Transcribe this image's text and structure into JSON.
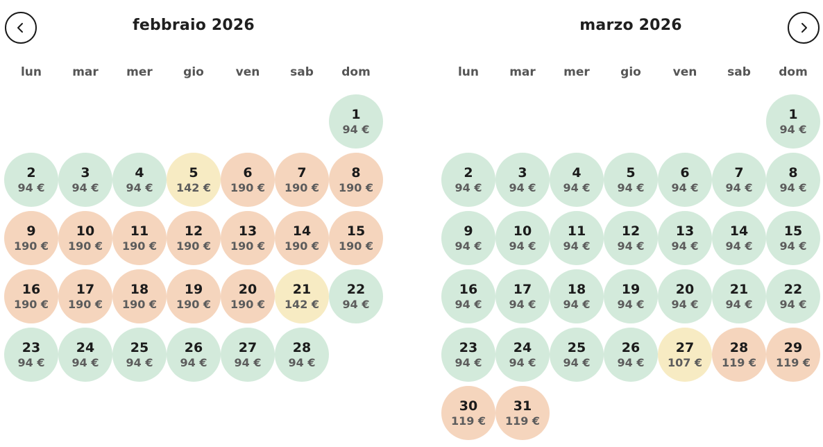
{
  "nav": {
    "prev_icon": "chevron-left-icon",
    "next_icon": "chevron-right-icon"
  },
  "colors": {
    "low": "#d3eadb",
    "mid": "#f7ebc3",
    "high": "#f5d5bd"
  },
  "weekdays": [
    "lun",
    "mar",
    "mer",
    "gio",
    "ven",
    "sab",
    "dom"
  ],
  "months": [
    {
      "title": "febbraio 2026",
      "start_offset": 6,
      "days": [
        {
          "day": "1",
          "price": "94 €",
          "level": "low"
        },
        {
          "day": "2",
          "price": "94 €",
          "level": "low"
        },
        {
          "day": "3",
          "price": "94 €",
          "level": "low"
        },
        {
          "day": "4",
          "price": "94 €",
          "level": "low"
        },
        {
          "day": "5",
          "price": "142 €",
          "level": "mid"
        },
        {
          "day": "6",
          "price": "190 €",
          "level": "high"
        },
        {
          "day": "7",
          "price": "190 €",
          "level": "high"
        },
        {
          "day": "8",
          "price": "190 €",
          "level": "high"
        },
        {
          "day": "9",
          "price": "190 €",
          "level": "high"
        },
        {
          "day": "10",
          "price": "190 €",
          "level": "high"
        },
        {
          "day": "11",
          "price": "190 €",
          "level": "high"
        },
        {
          "day": "12",
          "price": "190 €",
          "level": "high"
        },
        {
          "day": "13",
          "price": "190 €",
          "level": "high"
        },
        {
          "day": "14",
          "price": "190 €",
          "level": "high"
        },
        {
          "day": "15",
          "price": "190 €",
          "level": "high"
        },
        {
          "day": "16",
          "price": "190 €",
          "level": "high"
        },
        {
          "day": "17",
          "price": "190 €",
          "level": "high"
        },
        {
          "day": "18",
          "price": "190 €",
          "level": "high"
        },
        {
          "day": "19",
          "price": "190 €",
          "level": "high"
        },
        {
          "day": "20",
          "price": "190 €",
          "level": "high"
        },
        {
          "day": "21",
          "price": "142 €",
          "level": "mid"
        },
        {
          "day": "22",
          "price": "94 €",
          "level": "low"
        },
        {
          "day": "23",
          "price": "94 €",
          "level": "low"
        },
        {
          "day": "24",
          "price": "94 €",
          "level": "low"
        },
        {
          "day": "25",
          "price": "94 €",
          "level": "low"
        },
        {
          "day": "26",
          "price": "94 €",
          "level": "low"
        },
        {
          "day": "27",
          "price": "94 €",
          "level": "low"
        },
        {
          "day": "28",
          "price": "94 €",
          "level": "low"
        }
      ]
    },
    {
      "title": "marzo 2026",
      "start_offset": 6,
      "days": [
        {
          "day": "1",
          "price": "94 €",
          "level": "low"
        },
        {
          "day": "2",
          "price": "94 €",
          "level": "low"
        },
        {
          "day": "3",
          "price": "94 €",
          "level": "low"
        },
        {
          "day": "4",
          "price": "94 €",
          "level": "low"
        },
        {
          "day": "5",
          "price": "94 €",
          "level": "low"
        },
        {
          "day": "6",
          "price": "94 €",
          "level": "low"
        },
        {
          "day": "7",
          "price": "94 €",
          "level": "low"
        },
        {
          "day": "8",
          "price": "94 €",
          "level": "low"
        },
        {
          "day": "9",
          "price": "94 €",
          "level": "low"
        },
        {
          "day": "10",
          "price": "94 €",
          "level": "low"
        },
        {
          "day": "11",
          "price": "94 €",
          "level": "low"
        },
        {
          "day": "12",
          "price": "94 €",
          "level": "low"
        },
        {
          "day": "13",
          "price": "94 €",
          "level": "low"
        },
        {
          "day": "14",
          "price": "94 €",
          "level": "low"
        },
        {
          "day": "15",
          "price": "94 €",
          "level": "low"
        },
        {
          "day": "16",
          "price": "94 €",
          "level": "low"
        },
        {
          "day": "17",
          "price": "94 €",
          "level": "low"
        },
        {
          "day": "18",
          "price": "94 €",
          "level": "low"
        },
        {
          "day": "19",
          "price": "94 €",
          "level": "low"
        },
        {
          "day": "20",
          "price": "94 €",
          "level": "low"
        },
        {
          "day": "21",
          "price": "94 €",
          "level": "low"
        },
        {
          "day": "22",
          "price": "94 €",
          "level": "low"
        },
        {
          "day": "23",
          "price": "94 €",
          "level": "low"
        },
        {
          "day": "24",
          "price": "94 €",
          "level": "low"
        },
        {
          "day": "25",
          "price": "94 €",
          "level": "low"
        },
        {
          "day": "26",
          "price": "94 €",
          "level": "low"
        },
        {
          "day": "27",
          "price": "107 €",
          "level": "mid"
        },
        {
          "day": "28",
          "price": "119 €",
          "level": "high"
        },
        {
          "day": "29",
          "price": "119 €",
          "level": "high"
        },
        {
          "day": "30",
          "price": "119 €",
          "level": "high"
        },
        {
          "day": "31",
          "price": "119 €",
          "level": "high"
        }
      ]
    }
  ]
}
